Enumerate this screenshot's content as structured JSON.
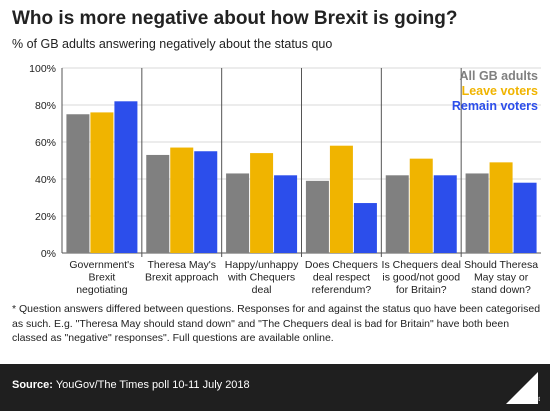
{
  "title": "Who is more negative about how Brexit is going?",
  "subtitle": "% of GB adults answering negatively about the status quo",
  "colors": {
    "all": "#808080",
    "leave": "#f0b400",
    "remain": "#2c4eeb"
  },
  "chart_data": {
    "type": "bar",
    "categories": [
      [
        "Government's",
        "Brexit",
        "negotiating"
      ],
      [
        "Theresa May's",
        "Brexit approach"
      ],
      [
        "Happy/unhappy",
        "with Chequers",
        "deal"
      ],
      [
        "Does Chequers",
        "deal respect",
        "referendum?"
      ],
      [
        "Is Chequers deal",
        "is good/not good",
        "for Britain?"
      ],
      [
        "Should Theresa",
        "May stay or",
        "stand down?"
      ]
    ],
    "series": [
      {
        "name": "All GB adults",
        "values": [
          75,
          53,
          43,
          39,
          42,
          43
        ]
      },
      {
        "name": "Leave voters",
        "values": [
          76,
          57,
          54,
          58,
          51,
          49
        ]
      },
      {
        "name": "Remain voters",
        "values": [
          82,
          55,
          42,
          27,
          42,
          38
        ]
      }
    ],
    "yticks": [
      "0%",
      "20%",
      "40%",
      "60%",
      "80%",
      "100%"
    ],
    "ylim": [
      0,
      100
    ],
    "legend": "top-right"
  },
  "footnote": "* Question answers differed between questions. Responses for and against the status quo have been categorised as such. E.g. \"Theresa May should stand down\" and \"The Chequers deal is bad for Britain\" have both been classed as \"negative\" responses\". Full questions are available online.",
  "footer": {
    "source_label": "Source:",
    "source_text": " YouGov/The Times poll 10-11 July 2018",
    "logo_text": "Full Fact"
  }
}
